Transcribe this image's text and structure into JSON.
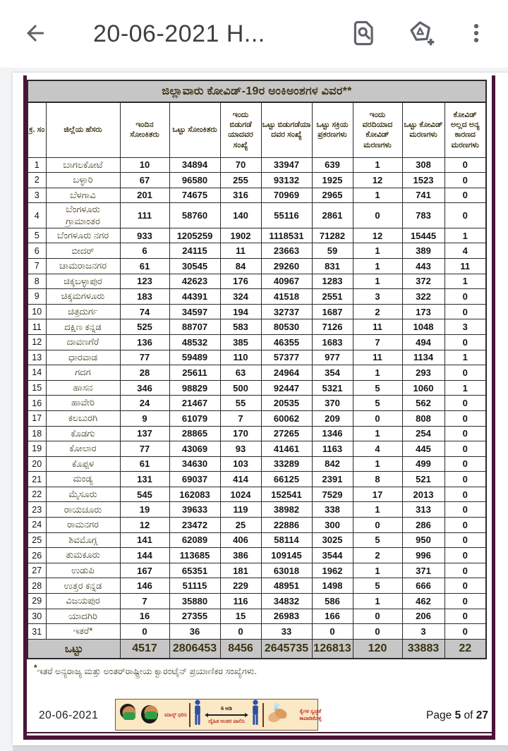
{
  "app_bar": {
    "title": "20-06-2021 H...",
    "back_icon": "back-arrow-icon",
    "action_icons": [
      "find-in-document-icon",
      "annotate-add-icon",
      "overflow-menu-icon"
    ]
  },
  "colors": {
    "frame_purple": "#4a1537",
    "header_gray": "#c6c6c6",
    "banner_cream": "#fbe8c4",
    "banner_red": "#c0392b",
    "person_blue": "#2b50a1",
    "mask_green": "#2f9e48",
    "icon_gray": "#5f6368"
  },
  "table": {
    "title": "ಜಿಲ್ಲಾವಾರು ಕೋವಿಡ್-19ರ ಅಂಕಿಅಂಶಗಳ ವಿವರ**",
    "columns": [
      "ಕ್ರ. ಸಂ",
      "ಜಿಲ್ಲೆಯ ಹೆಸರು",
      "ಇಂದಿನ ಸೋಂಕಿತರು",
      "ಒಟ್ಟು ಸೋಂಕಿತರು",
      "ಇಂದು ಬಿಡುಗಡೆ ಯಾದವರ ಸಂಖ್ಯೆ",
      "ಒಟ್ಟು ಬಿಡುಗಡೆಯಾ ದವರ ಸಂಖ್ಯೆ",
      "ಒಟ್ಟು ಸಕ್ರಿಯ ಪ್ರಕರಣಗಳು",
      "ಇಂದು ವರದಿಯಾದ ಕೋವಿಡ್ ಮರಣಗಳು",
      "ಒಟ್ಟು ಕೋವಿಡ್ ಮರಣಗಳು",
      "ಕೋವಿಡ್ ಅಲ್ಲದ ಅನ್ಯ ಕಾರಣದ ಮರಣಗಳು"
    ],
    "rows": [
      [
        1,
        "ಬಾಗಲಕೋಟೆ",
        10,
        34894,
        70,
        33947,
        639,
        1,
        308,
        0
      ],
      [
        2,
        "ಬಳ್ಳಾರಿ",
        67,
        96580,
        255,
        93132,
        1925,
        12,
        1523,
        0
      ],
      [
        3,
        "ಬೆಳಗಾವಿ",
        201,
        74675,
        316,
        70969,
        2965,
        1,
        741,
        0
      ],
      [
        4,
        "ಬೆಂಗಳೂರು ಗ್ರಾಮಾಂತರ",
        111,
        58760,
        140,
        55116,
        2861,
        0,
        783,
        0
      ],
      [
        5,
        "ಬೆಂಗಳೂರು ನಗರ",
        933,
        1205259,
        1902,
        1118531,
        71282,
        12,
        15445,
        1
      ],
      [
        6,
        "ಬೀದರ್",
        6,
        24115,
        11,
        23663,
        59,
        1,
        389,
        4
      ],
      [
        7,
        "ಚಾಮರಾಜನಗರ",
        61,
        30545,
        84,
        29260,
        831,
        1,
        443,
        11
      ],
      [
        8,
        "ಚಿಕ್ಕಬಳ್ಳಾಪುರ",
        123,
        42623,
        176,
        40967,
        1283,
        1,
        372,
        1
      ],
      [
        9,
        "ಚಿಕ್ಕಮಗಳೂರು",
        183,
        44391,
        324,
        41518,
        2551,
        3,
        322,
        0
      ],
      [
        10,
        "ಚಿತ್ರದುರ್ಗ",
        74,
        34597,
        194,
        32737,
        1687,
        2,
        173,
        0
      ],
      [
        11,
        "ದಕ್ಷಿಣ ಕನ್ನಡ",
        525,
        88707,
        583,
        80530,
        7126,
        11,
        1048,
        3
      ],
      [
        12,
        "ದಾವಣಗೆರೆ",
        136,
        48532,
        385,
        46355,
        1683,
        7,
        494,
        0
      ],
      [
        13,
        "ಧಾರವಾಡ",
        77,
        59489,
        110,
        57377,
        977,
        11,
        1134,
        1
      ],
      [
        14,
        "ಗದಗ",
        28,
        25611,
        63,
        24964,
        354,
        1,
        293,
        0
      ],
      [
        15,
        "ಹಾಸನ",
        346,
        98829,
        500,
        92447,
        5321,
        5,
        1060,
        1
      ],
      [
        16,
        "ಹಾವೇರಿ",
        24,
        21467,
        55,
        20535,
        370,
        5,
        562,
        0
      ],
      [
        17,
        "ಕಲಬುರಗಿ",
        9,
        61079,
        7,
        60062,
        209,
        0,
        808,
        0
      ],
      [
        18,
        "ಕೊಡಗು",
        137,
        28865,
        170,
        27265,
        1346,
        1,
        254,
        0
      ],
      [
        19,
        "ಕೋಲಾರ",
        77,
        43069,
        93,
        41461,
        1163,
        4,
        445,
        0
      ],
      [
        20,
        "ಕೊಪ್ಪಳ",
        61,
        34630,
        103,
        33289,
        842,
        1,
        499,
        0
      ],
      [
        21,
        "ಮಂಡ್ಯ",
        131,
        69037,
        414,
        66125,
        2391,
        8,
        521,
        0
      ],
      [
        22,
        "ಮೈಸೂರು",
        545,
        162083,
        1024,
        152541,
        7529,
        17,
        2013,
        0
      ],
      [
        23,
        "ರಾಯಚೂರು",
        19,
        39633,
        119,
        38982,
        338,
        1,
        313,
        0
      ],
      [
        24,
        "ರಾಮನಗರ",
        12,
        23472,
        25,
        22886,
        300,
        0,
        286,
        0
      ],
      [
        25,
        "ಶಿವಮೊಗ್ಗ",
        141,
        62089,
        406,
        58114,
        3025,
        5,
        950,
        0
      ],
      [
        26,
        "ತುಮಕೂರು",
        144,
        113685,
        386,
        109145,
        3544,
        2,
        996,
        0
      ],
      [
        27,
        "ಉಡುಪಿ",
        167,
        65351,
        181,
        63018,
        1962,
        1,
        371,
        0
      ],
      [
        28,
        "ಉತ್ತರ ಕನ್ನಡ",
        146,
        51115,
        229,
        48951,
        1498,
        5,
        666,
        0
      ],
      [
        29,
        "ವಿಜಯಪುರ",
        7,
        35880,
        116,
        34832,
        586,
        1,
        462,
        0
      ],
      [
        30,
        "ಯಾದಗಿರಿ",
        16,
        27355,
        15,
        26983,
        166,
        0,
        206,
        0
      ],
      [
        31,
        "ಇತರೆ*",
        0,
        36,
        0,
        33,
        0,
        0,
        3,
        0
      ]
    ],
    "total": {
      "label": "ಒಟ್ಟು",
      "values": [
        4517,
        2806453,
        8456,
        2645735,
        126813,
        120,
        33883,
        22
      ]
    },
    "footnote_star": "*",
    "footnote": "ಇತರೆ ಅನ್ಯರಾಜ್ಯ ಮತ್ತು ಅಂತರ್‌ರಾಷ್ಟ್ರೀಯ ಕ್ವಾರಂಟೈನ್ ಪ್ರಯಾಣಿಕರ ಸಂಖ್ಯೆಗಳು."
  },
  "footer": {
    "date": "20-06-2021",
    "page_word": "Page",
    "page_number": "5",
    "of_word": "of",
    "page_total": "27",
    "banner": {
      "mask_text": "ಮಾಸ್ಕ್ ಧರಿಸಿ",
      "distance_value": "6 ಅಡಿ",
      "distance_text": "ದೈಹಿಕ ಅಂತರ ಪಾಲಿಸಿ",
      "hygiene_text": "ಕೈಗಳ ಸ್ವಚ್ಛತೆ ಕಾಪಾಡಿಕೊಳ್ಳಿ"
    }
  }
}
